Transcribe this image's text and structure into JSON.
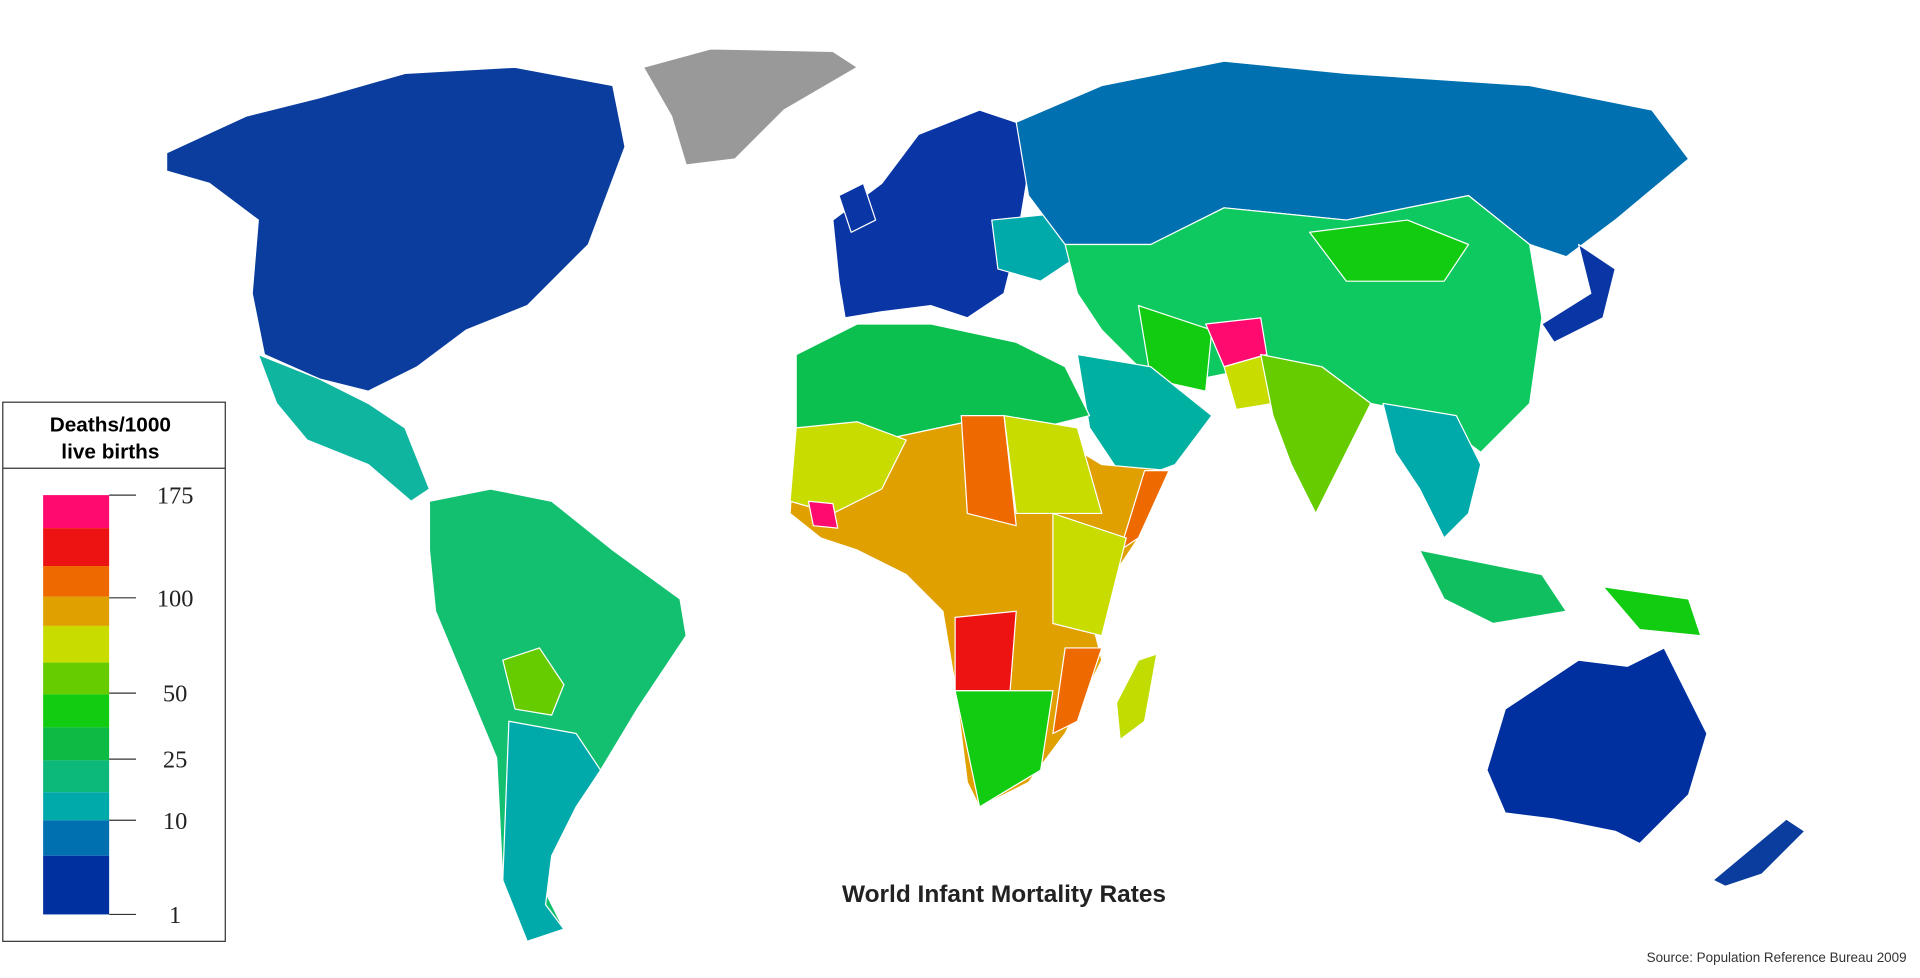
{
  "title": "World Infant Mortality Rates",
  "source": "Source: Population Reference Bureau 2009",
  "legend": {
    "title": [
      "Deaths/1000",
      "live births"
    ],
    "ticks": [
      175,
      100,
      50,
      25,
      10,
      1
    ],
    "colors": [
      "#ff0a6e",
      "#ee1313",
      "#ee6a00",
      "#e0a000",
      "#c8dc00",
      "#66cc00",
      "#11cc11",
      "#0dbb44",
      "#0cb87a",
      "#00aaaa",
      "#0070b0",
      "#0030a0"
    ]
  }
}
